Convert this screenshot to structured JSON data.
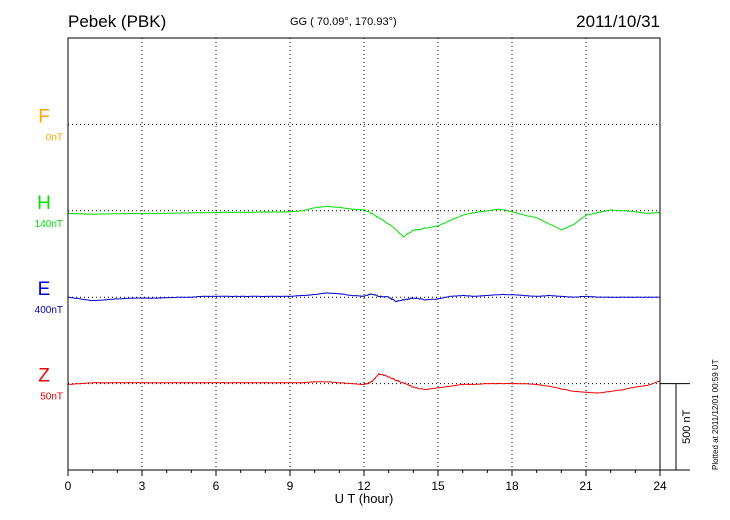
{
  "header": {
    "station": "Pebek (PBK)",
    "coords": "GG ( 70.09°, 170.93°)",
    "date": "2011/10/31",
    "plotted": "Plotted at 2011/12/01 00:59 UT"
  },
  "chart_data": {
    "type": "line",
    "xlabel": "U T (hour)",
    "xlim": [
      0,
      24
    ],
    "xticks": [
      0,
      3,
      6,
      9,
      12,
      15,
      18,
      21,
      24
    ],
    "grid": true,
    "units": "nT",
    "scale_bar": {
      "label": "500 nT",
      "value": 500
    },
    "series": [
      {
        "name": "F",
        "offset_label": "0nT",
        "color": "#ffa500",
        "baseline_level": 4,
        "values": []
      },
      {
        "name": "H",
        "offset_label": "140nT",
        "color": "#00e000",
        "baseline_level": 3,
        "hours": [
          0,
          0.5,
          1,
          1.5,
          2,
          2.5,
          3,
          3.5,
          4,
          4.5,
          5,
          5.5,
          6,
          6.5,
          7,
          7.5,
          8,
          8.5,
          9,
          9.5,
          10,
          10.5,
          11,
          11.5,
          12,
          12.3,
          12.6,
          13,
          13.3,
          13.6,
          14,
          14.5,
          15,
          15.5,
          16,
          16.5,
          17,
          17.5,
          18,
          18.5,
          19,
          19.5,
          20,
          20.5,
          21,
          21.5,
          22,
          22.5,
          23,
          23.5,
          24
        ],
        "values": [
          15,
          17,
          20,
          18,
          17,
          16,
          15,
          15,
          14,
          13,
          12,
          11,
          10,
          9,
          9,
          8,
          7,
          7,
          5,
          0,
          -18,
          -25,
          -20,
          -10,
          -5,
          15,
          40,
          75,
          110,
          150,
          112,
          100,
          88,
          55,
          25,
          10,
          0,
          -10,
          5,
          25,
          40,
          75,
          110,
          80,
          25,
          10,
          -5,
          0,
          5,
          15,
          10
        ]
      },
      {
        "name": "E",
        "offset_label": "400nT",
        "color": "#0000cc",
        "baseline_level": 2,
        "hours": [
          0,
          0.5,
          1,
          1.5,
          2,
          2.5,
          3,
          3.5,
          4,
          4.5,
          5,
          5.5,
          6,
          6.5,
          7,
          7.5,
          8,
          8.5,
          9,
          9.5,
          10,
          10.5,
          11,
          11.5,
          12,
          12.3,
          12.6,
          13,
          13.3,
          13.6,
          14,
          14.5,
          15,
          15.5,
          16,
          16.5,
          17,
          17.5,
          18,
          18.5,
          19,
          19.5,
          20,
          20.5,
          21,
          21.5,
          22,
          22.5,
          23,
          23.5,
          24
        ],
        "values": [
          0,
          10,
          20,
          15,
          10,
          5,
          5,
          5,
          3,
          0,
          0,
          -5,
          -5,
          -5,
          -5,
          -5,
          -5,
          -5,
          -5,
          -10,
          -15,
          -25,
          -20,
          -10,
          -5,
          -20,
          -5,
          0,
          25,
          15,
          5,
          15,
          10,
          -5,
          -10,
          -5,
          -10,
          -15,
          -15,
          -10,
          -5,
          -10,
          -5,
          0,
          -5,
          0,
          0,
          0,
          0,
          0,
          0
        ]
      },
      {
        "name": "Z",
        "offset_label": "50nT",
        "color": "#ee0000",
        "baseline_level": 1,
        "hours": [
          0,
          0.5,
          1,
          1.5,
          2,
          2.5,
          3,
          3.5,
          4,
          4.5,
          5,
          5.5,
          6,
          6.5,
          7,
          7.5,
          8,
          8.5,
          9,
          9.5,
          10,
          10.5,
          11,
          11.5,
          12,
          12.3,
          12.6,
          13,
          13.3,
          13.6,
          14,
          14.5,
          15,
          15.5,
          16,
          16.5,
          17,
          17.5,
          18,
          18.5,
          19,
          19.5,
          20,
          20.5,
          21,
          21.5,
          22,
          22.5,
          23,
          23.5,
          24
        ],
        "values": [
          5,
          0,
          -5,
          -5,
          -5,
          -5,
          -5,
          -5,
          -5,
          -5,
          -5,
          -5,
          -5,
          -5,
          -5,
          -5,
          -5,
          -5,
          -5,
          -5,
          -10,
          -10,
          -5,
          0,
          5,
          -10,
          -55,
          -40,
          -20,
          -5,
          20,
          35,
          25,
          15,
          5,
          5,
          0,
          0,
          0,
          0,
          5,
          15,
          30,
          45,
          50,
          55,
          45,
          35,
          20,
          10,
          -15
        ]
      }
    ]
  }
}
